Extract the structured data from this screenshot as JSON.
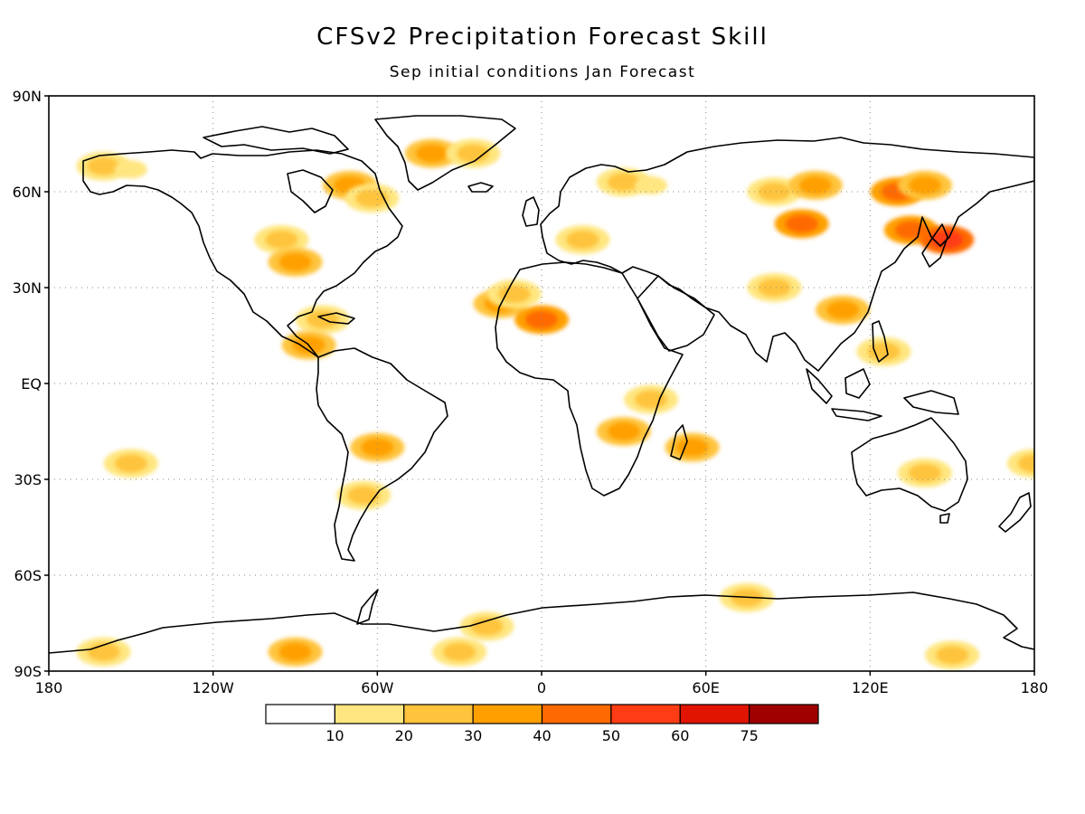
{
  "title": "CFSv2 Precipitation Forecast Skill",
  "subtitle": "Sep initial conditions   Jan Forecast",
  "axes": {
    "lat_labels": [
      "90N",
      "60N",
      "30N",
      "EQ",
      "30S",
      "60S",
      "90S"
    ],
    "lon_labels": [
      "180",
      "120W",
      "60W",
      "0",
      "60E",
      "120E",
      "180"
    ],
    "lat_values": [
      90,
      60,
      30,
      0,
      -30,
      -60,
      -90
    ],
    "lon_values": [
      -180,
      -120,
      -60,
      0,
      60,
      120,
      180
    ],
    "grid": "dotted"
  },
  "colorbar": {
    "labels": [
      "10",
      "20",
      "30",
      "40",
      "50",
      "60",
      "75"
    ],
    "colors": [
      "#ffffff",
      "#ffe680",
      "#ffc43c",
      "#ffa000",
      "#ff6a00",
      "#ff3c14",
      "#e01400",
      "#a00000"
    ]
  },
  "colors": {
    "coast": "#000000",
    "grid": "#888888"
  },
  "chart_data": {
    "type": "heatmap",
    "title": "CFSv2 Precipitation Forecast Skill",
    "subtitle": "Sep initial conditions   Jan Forecast",
    "xlim": [
      -180,
      180
    ],
    "ylim": [
      -90,
      90
    ],
    "levels": [
      10,
      20,
      30,
      40,
      50,
      60,
      75
    ],
    "regions": [
      {
        "lon": -40,
        "lat": 72,
        "level": 30
      },
      {
        "lon": -25,
        "lat": 72,
        "level": 20
      },
      {
        "lon": -160,
        "lat": 68,
        "level": 20
      },
      {
        "lon": -150,
        "lat": 67,
        "level": 10
      },
      {
        "lon": -70,
        "lat": 62,
        "level": 30
      },
      {
        "lon": -62,
        "lat": 58,
        "level": 20
      },
      {
        "lon": -95,
        "lat": 45,
        "level": 20
      },
      {
        "lon": -90,
        "lat": 38,
        "level": 30
      },
      {
        "lon": -80,
        "lat": 20,
        "level": 20
      },
      {
        "lon": -85,
        "lat": 12,
        "level": 30
      },
      {
        "lon": -15,
        "lat": 25,
        "level": 30
      },
      {
        "lon": 0,
        "lat": 20,
        "level": 40
      },
      {
        "lon": -10,
        "lat": 28,
        "level": 20
      },
      {
        "lon": 15,
        "lat": 45,
        "level": 20
      },
      {
        "lon": 30,
        "lat": 63,
        "level": 20
      },
      {
        "lon": 40,
        "lat": 62,
        "level": 10
      },
      {
        "lon": 85,
        "lat": 60,
        "level": 20
      },
      {
        "lon": 100,
        "lat": 62,
        "level": 30
      },
      {
        "lon": 130,
        "lat": 60,
        "level": 40
      },
      {
        "lon": 140,
        "lat": 62,
        "level": 30
      },
      {
        "lon": 95,
        "lat": 50,
        "level": 40
      },
      {
        "lon": 135,
        "lat": 48,
        "level": 40
      },
      {
        "lon": 148,
        "lat": 45,
        "level": 50
      },
      {
        "lon": 85,
        "lat": 30,
        "level": 20
      },
      {
        "lon": 110,
        "lat": 23,
        "level": 30
      },
      {
        "lon": 125,
        "lat": 10,
        "level": 20
      },
      {
        "lon": 30,
        "lat": -15,
        "level": 30
      },
      {
        "lon": 40,
        "lat": -5,
        "level": 20
      },
      {
        "lon": 55,
        "lat": -20,
        "level": 30
      },
      {
        "lon": -60,
        "lat": -20,
        "level": 30
      },
      {
        "lon": -65,
        "lat": -35,
        "level": 20
      },
      {
        "lon": -150,
        "lat": -25,
        "level": 20
      },
      {
        "lon": 140,
        "lat": -28,
        "level": 20
      },
      {
        "lon": 180,
        "lat": -25,
        "level": 20
      },
      {
        "lon": -90,
        "lat": -84,
        "level": 30
      },
      {
        "lon": -30,
        "lat": -84,
        "level": 20
      },
      {
        "lon": 150,
        "lat": -85,
        "level": 20
      },
      {
        "lon": -160,
        "lat": -84,
        "level": 20
      },
      {
        "lon": -20,
        "lat": -76,
        "level": 20
      },
      {
        "lon": 75,
        "lat": -67,
        "level": 20
      }
    ]
  }
}
